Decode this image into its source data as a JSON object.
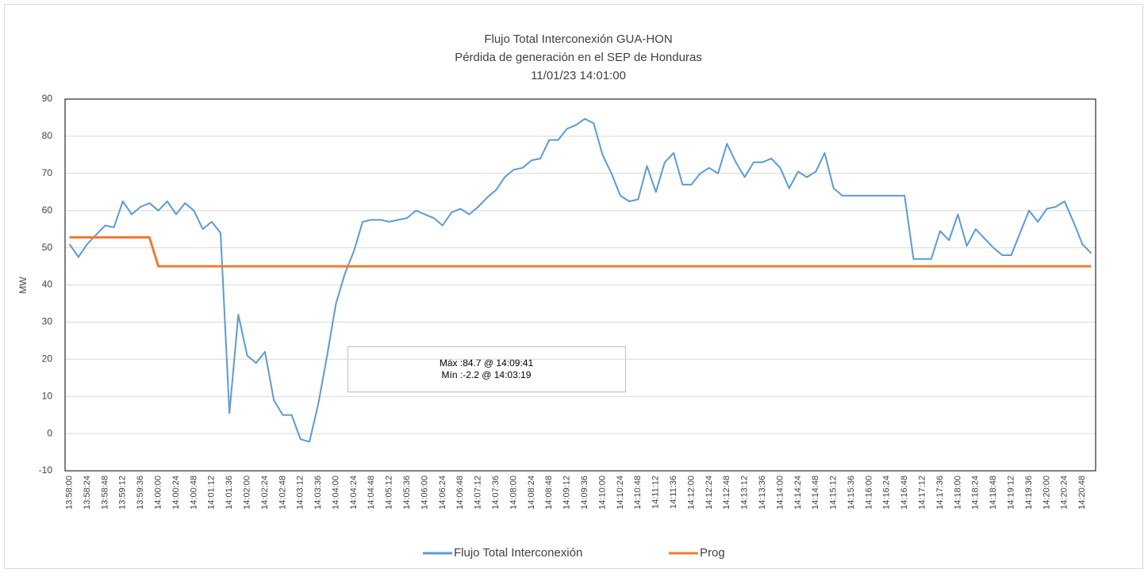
{
  "chart_data": {
    "type": "line",
    "title": [
      "Flujo Total Interconexión GUA-HON",
      "Pérdida de generación en el SEP de Honduras",
      "11/01/23 14:01:00"
    ],
    "y_label": "MW",
    "annotations": [
      "Máx :84.7 @ 14:09:41",
      "Mín :-2.2 @ 14:03:19"
    ],
    "categories": [
      "13:58:00",
      null,
      "13:58:24",
      null,
      "13:58:48",
      null,
      "13:59:12",
      null,
      "13:59:36",
      null,
      "14:00:00",
      null,
      "14:00:24",
      null,
      "14:00:48",
      null,
      "14:01:12",
      null,
      "14:01:36",
      null,
      "14:02:00",
      null,
      "14:02:24",
      null,
      "14:02:48",
      null,
      "14:03:12",
      null,
      "14:03:36",
      null,
      "14:04:00",
      null,
      "14:04:24",
      null,
      "14:04:48",
      null,
      "14:05:12",
      null,
      "14:05:36",
      null,
      "14:06:00",
      null,
      "14:06:24",
      null,
      "14:06:48",
      null,
      "14:07:12",
      null,
      "14:07:36",
      null,
      "14:08:00",
      null,
      "14:08:24",
      null,
      "14:08:48",
      null,
      "14:09:12",
      null,
      "14:09:36",
      null,
      "14:10:00",
      null,
      "14:10:24",
      null,
      "14:10:48",
      null,
      "14:11:12",
      null,
      "14:11:36",
      null,
      "14:12:00",
      null,
      "14:12:24",
      null,
      "14:12:48",
      null,
      "14:13:12",
      null,
      "14:13:36",
      null,
      "14:14:00",
      null,
      "14:14:24",
      null,
      "14:14:48",
      null,
      "14:15:12",
      null,
      "14:15:36",
      null,
      "14:16:00",
      null,
      "14:16:24",
      null,
      "14:16:48",
      null,
      "14:17:12",
      null,
      "14:17:36",
      null,
      "14:18:00",
      null,
      "14:18:24",
      null,
      "14:18:48",
      null,
      "14:19:12",
      null,
      "14:19:36",
      null,
      "14:20:00",
      null,
      "14:20:24",
      null,
      "14:20:48",
      null
    ],
    "series": [
      {
        "name": "Flujo Total Interconexión",
        "color": "#5b9bd5",
        "values": [
          51,
          47.5,
          51,
          53.5,
          56,
          55.5,
          62.5,
          59,
          61,
          62,
          60,
          62.5,
          59,
          62,
          60,
          55,
          57,
          54,
          5.5,
          32,
          21,
          19,
          22,
          9,
          5,
          5,
          -1.5,
          -2.2,
          8,
          21,
          35,
          43,
          49,
          57,
          57.5,
          57.5,
          57,
          57.5,
          58,
          60,
          59,
          58,
          56,
          59.5,
          60.5,
          59,
          61,
          63.5,
          65.5,
          69,
          71,
          71.5,
          73.5,
          74,
          79,
          79,
          82,
          83,
          84.7,
          83.5,
          75,
          70,
          64,
          62.5,
          63,
          72,
          65,
          73,
          75.5,
          67,
          67,
          70,
          71.5,
          70,
          78,
          73,
          69,
          73,
          73,
          74,
          71.5,
          66,
          70.5,
          69,
          70.5,
          75.5,
          66,
          64,
          64,
          64,
          64,
          64,
          64,
          64,
          64,
          47,
          47,
          47,
          54.5,
          52,
          59,
          50.5,
          55,
          52.5,
          50,
          48,
          48,
          54,
          60,
          57,
          60.5,
          61,
          62.5,
          57,
          51,
          48.5
        ]
      },
      {
        "name": "Prog",
        "color": "#ed7d31",
        "values": [
          52.8,
          52.8,
          52.8,
          52.8,
          52.8,
          52.8,
          52.8,
          52.8,
          52.8,
          52.8,
          45,
          45,
          45,
          45,
          45,
          45,
          45,
          45,
          45,
          45,
          45,
          45,
          45,
          45,
          45,
          45,
          45,
          45,
          45,
          45,
          45,
          45,
          45,
          45,
          45,
          45,
          45,
          45,
          45,
          45,
          45,
          45,
          45,
          45,
          45,
          45,
          45,
          45,
          45,
          45,
          45,
          45,
          45,
          45,
          45,
          45,
          45,
          45,
          45,
          45,
          45,
          45,
          45,
          45,
          45,
          45,
          45,
          45,
          45,
          45,
          45,
          45,
          45,
          45,
          45,
          45,
          45,
          45,
          45,
          45,
          45,
          45,
          45,
          45,
          45,
          45,
          45,
          45,
          45,
          45,
          45,
          45,
          45,
          45,
          45,
          45,
          45,
          45,
          45,
          45,
          45,
          45,
          45,
          45,
          45,
          45,
          45,
          45,
          45,
          45,
          45,
          45,
          45,
          45,
          45,
          45
        ]
      }
    ],
    "ylim": [
      -10,
      90
    ],
    "yticks": [
      -10,
      0,
      10,
      20,
      30,
      40,
      50,
      60,
      70,
      80,
      90
    ],
    "grid": true,
    "legend": "bottom"
  }
}
